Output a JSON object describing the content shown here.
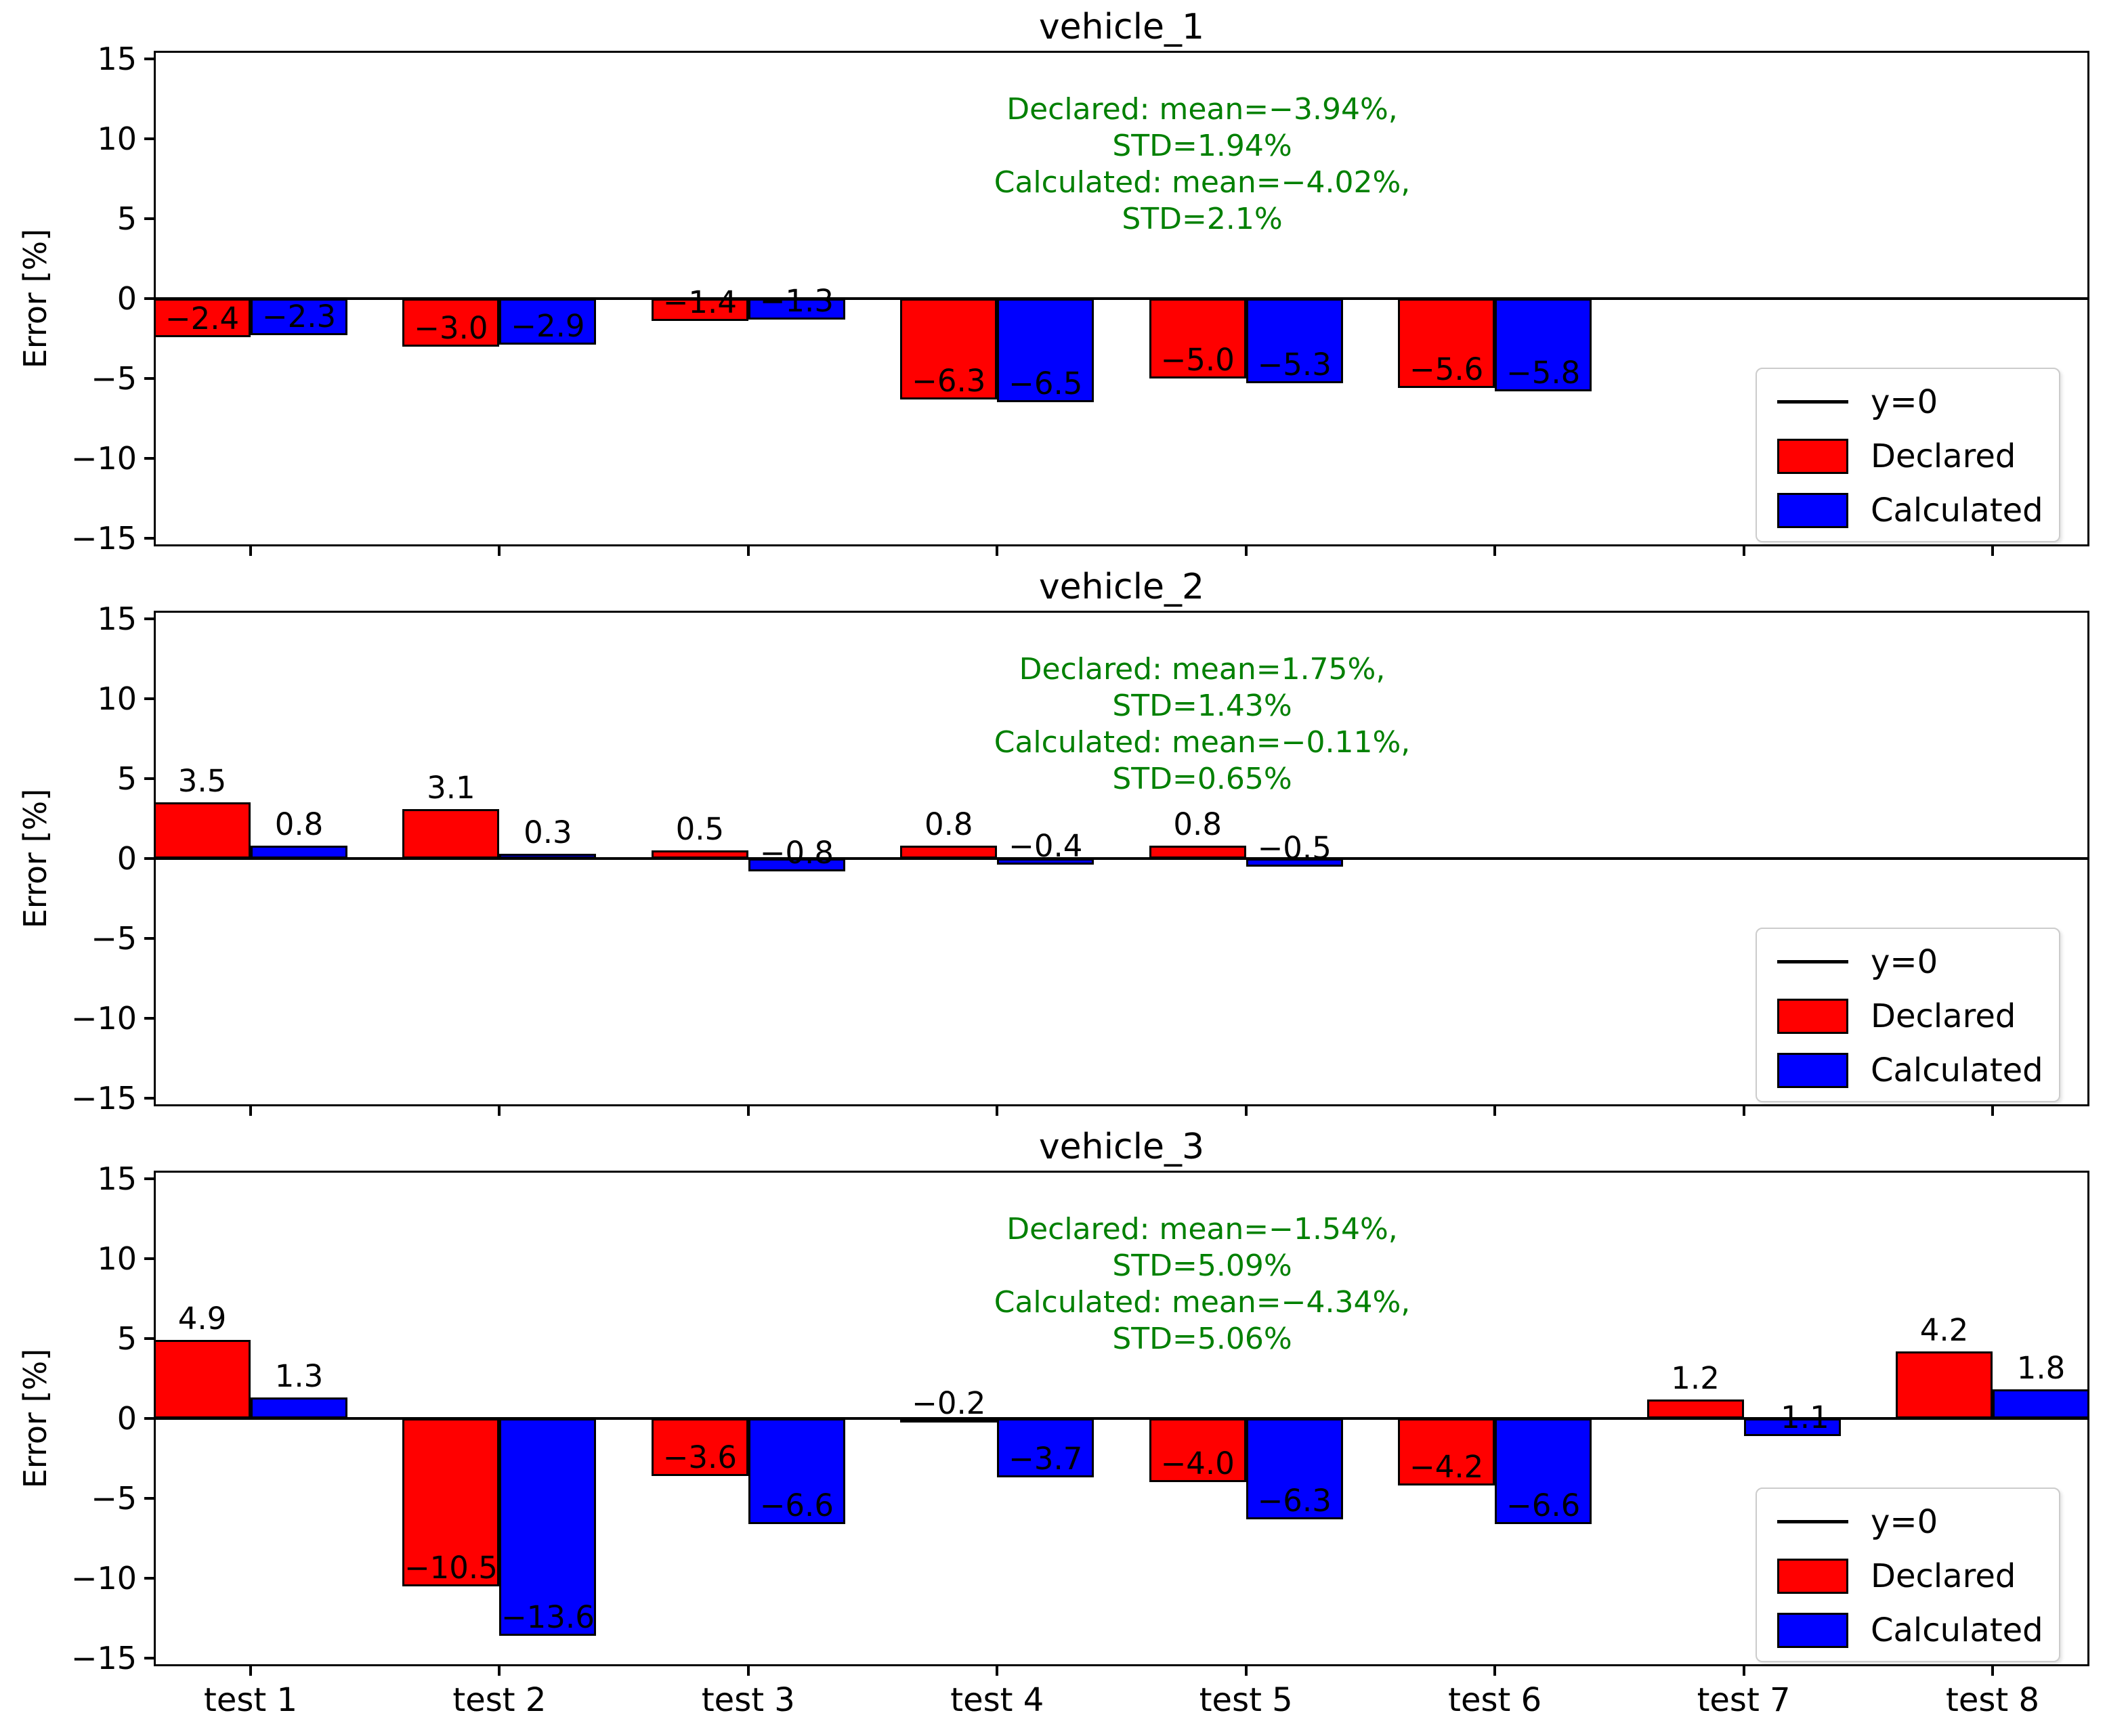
{
  "figure": {
    "background": "#ffffff"
  },
  "colors": {
    "declared": "#ff0000",
    "calculated": "#0000ff",
    "annotation": "#008000",
    "axis": "#000000"
  },
  "legend": {
    "items": [
      {
        "type": "line",
        "label": "y=0",
        "color": "#000000"
      },
      {
        "type": "patch",
        "label": "Declared",
        "color": "#ff0000"
      },
      {
        "type": "patch",
        "label": "Calculated",
        "color": "#0000ff"
      }
    ]
  },
  "chart_data": [
    {
      "type": "bar",
      "title": "vehicle_1",
      "xlabel": "",
      "ylabel": "Error [%]",
      "ylim": [
        -15.5,
        15.5
      ],
      "yticks": [
        15,
        10,
        5,
        0,
        -5,
        -10,
        -15
      ],
      "y_tick_labels": [
        "15",
        "10",
        "5",
        "0",
        "−5",
        "−10",
        "−15"
      ],
      "categories": [
        "test 1",
        "test 2",
        "test 3",
        "test 4",
        "test 5",
        "test 6",
        "test 7",
        "test 8"
      ],
      "grid": false,
      "legend_position": "lower right",
      "series": [
        {
          "name": "Declared",
          "color": "#ff0000",
          "values": [
            -2.4,
            -3.0,
            -1.4,
            -6.3,
            -5.0,
            -5.6,
            null,
            null
          ],
          "labels": [
            "−2.4",
            "−3.0",
            "−1.4",
            "−6.3",
            "−5.0",
            "−5.6",
            null,
            null
          ]
        },
        {
          "name": "Calculated",
          "color": "#0000ff",
          "values": [
            -2.3,
            -2.9,
            -1.3,
            -6.5,
            -5.3,
            -5.8,
            null,
            null
          ],
          "labels": [
            "−2.3",
            "−2.9",
            "−1.3",
            "−6.5",
            "−5.3",
            "−5.8",
            null,
            null
          ]
        }
      ],
      "annotation": {
        "color": "#008000",
        "lines": [
          "Declared: mean=−3.94%,",
          "STD=1.94%",
          "Calculated: mean=−4.02%,",
          "STD=2.1%"
        ]
      }
    },
    {
      "type": "bar",
      "title": "vehicle_2",
      "xlabel": "",
      "ylabel": "Error [%]",
      "ylim": [
        -15.5,
        15.5
      ],
      "yticks": [
        15,
        10,
        5,
        0,
        -5,
        -10,
        -15
      ],
      "y_tick_labels": [
        "15",
        "10",
        "5",
        "0",
        "−5",
        "−10",
        "−15"
      ],
      "categories": [
        "test 1",
        "test 2",
        "test 3",
        "test 4",
        "test 5",
        "test 6",
        "test 7",
        "test 8"
      ],
      "grid": false,
      "legend_position": "lower right",
      "series": [
        {
          "name": "Declared",
          "color": "#ff0000",
          "values": [
            3.5,
            3.1,
            0.5,
            0.8,
            0.8,
            null,
            null,
            null
          ],
          "labels": [
            "3.5",
            "3.1",
            "0.5",
            "0.8",
            "0.8",
            null,
            null,
            null
          ]
        },
        {
          "name": "Calculated",
          "color": "#0000ff",
          "values": [
            0.8,
            0.3,
            -0.8,
            -0.4,
            -0.5,
            null,
            null,
            null
          ],
          "labels": [
            "0.8",
            "0.3",
            "−0.8",
            "−0.4",
            "−0.5",
            null,
            null,
            null
          ]
        }
      ],
      "annotation": {
        "color": "#008000",
        "lines": [
          "Declared: mean=1.75%,",
          "STD=1.43%",
          "Calculated: mean=−0.11%,",
          "STD=0.65%"
        ]
      }
    },
    {
      "type": "bar",
      "title": "vehicle_3",
      "xlabel": "",
      "ylabel": "Error [%]",
      "ylim": [
        -15.5,
        15.5
      ],
      "yticks": [
        15,
        10,
        5,
        0,
        -5,
        -10,
        -15
      ],
      "y_tick_labels": [
        "15",
        "10",
        "5",
        "0",
        "−5",
        "−10",
        "−15"
      ],
      "categories": [
        "test 1",
        "test 2",
        "test 3",
        "test 4",
        "test 5",
        "test 6",
        "test 7",
        "test 8"
      ],
      "grid": false,
      "legend_position": "lower right",
      "series": [
        {
          "name": "Declared",
          "color": "#ff0000",
          "values": [
            4.9,
            -10.5,
            -3.6,
            -0.2,
            -4.0,
            -4.2,
            1.2,
            4.2
          ],
          "labels": [
            "4.9",
            "−10.5",
            "−3.6",
            "−0.2",
            "−4.0",
            "−4.2",
            "1.2",
            "4.2"
          ]
        },
        {
          "name": "Calculated",
          "color": "#0000ff",
          "values": [
            1.3,
            -13.6,
            -6.6,
            -3.7,
            -6.3,
            -6.6,
            -1.1,
            1.8
          ],
          "labels": [
            "1.3",
            "−13.6",
            "−6.6",
            "−3.7",
            "−6.3",
            "−6.6",
            "−1.1",
            "1.8"
          ]
        }
      ],
      "annotation": {
        "color": "#008000",
        "lines": [
          "Declared: mean=−1.54%,",
          "STD=5.09%",
          "Calculated: mean=−4.34%,",
          "STD=5.06%"
        ]
      }
    }
  ]
}
